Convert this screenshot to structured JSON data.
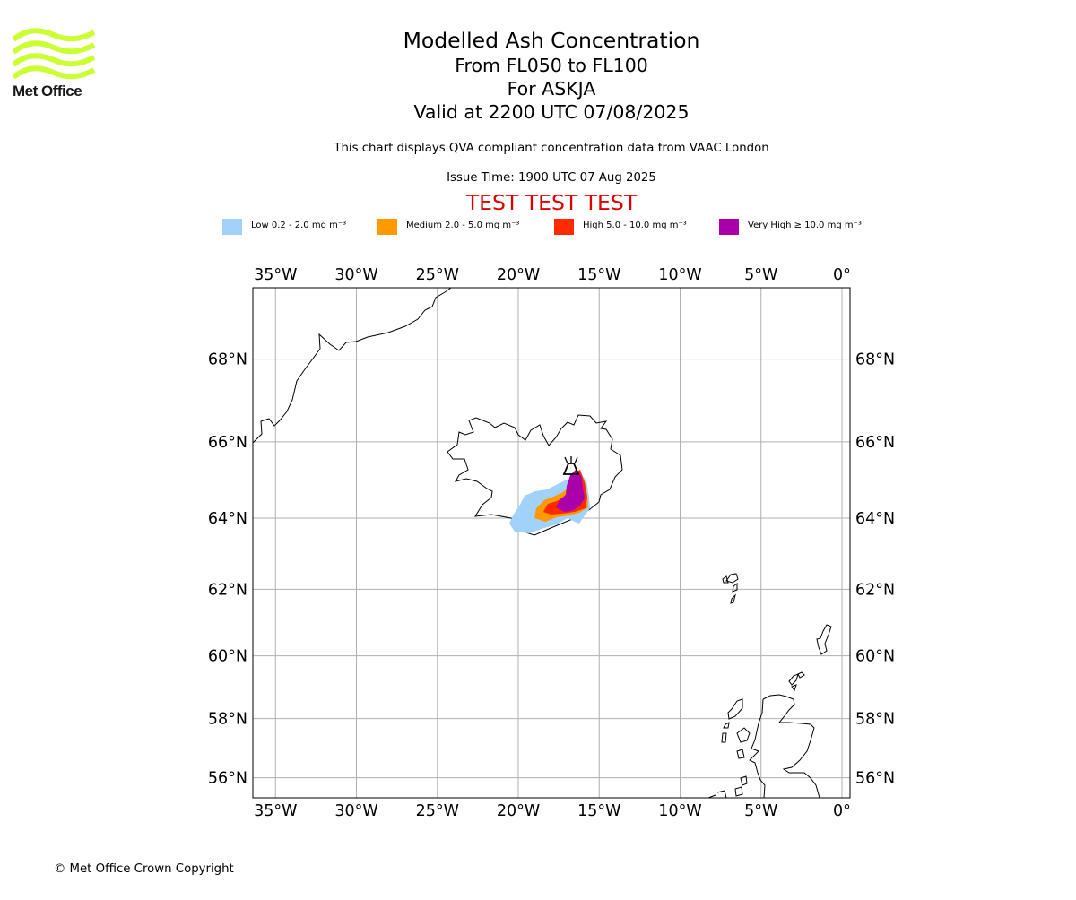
{
  "logo": {
    "text": "Met Office",
    "wave_color": "#ccff33",
    "text_color": "#1a1a1a"
  },
  "header": {
    "title": "Modelled Ash Concentration",
    "level_range": "From FL050 to FL100",
    "volcano": "For ASKJA",
    "valid_time": "Valid at 2200 UTC 07/08/2025",
    "description": "This chart displays QVA compliant concentration data from VAAC London",
    "issue_time": "Issue Time: 1900 UTC 07 Aug 2025",
    "test_banner": "TEST TEST TEST"
  },
  "legend": [
    {
      "label": "Low 0.2 - 2.0 mg m⁻³",
      "color": "#a0d2fa"
    },
    {
      "label": "Medium 2.0 - 5.0 mg m⁻³",
      "color": "#ff9900"
    },
    {
      "label": "High 5.0 - 10.0 mg m⁻³",
      "color": "#ff2a00"
    },
    {
      "label": "Very High ≥ 10.0 mg m⁻³",
      "color": "#aa00aa"
    }
  ],
  "map": {
    "projection": "Mercator",
    "extent": {
      "lon_min": -36.4,
      "lon_max": 0.5,
      "lat_min": 55.3,
      "lat_max": 69.6
    },
    "longitude_ticks": [
      {
        "value": -35,
        "label": "35°W"
      },
      {
        "value": -30,
        "label": "30°W"
      },
      {
        "value": -25,
        "label": "25°W"
      },
      {
        "value": -20,
        "label": "20°W"
      },
      {
        "value": -15,
        "label": "15°W"
      },
      {
        "value": -10,
        "label": "10°W"
      },
      {
        "value": -5,
        "label": "5°W"
      },
      {
        "value": 0,
        "label": "0°"
      }
    ],
    "latitude_ticks": [
      {
        "value": 68,
        "label": "68°N"
      },
      {
        "value": 66,
        "label": "66°N"
      },
      {
        "value": 64,
        "label": "64°N"
      },
      {
        "value": 62,
        "label": "62°N"
      },
      {
        "value": 60,
        "label": "60°N"
      },
      {
        "value": 58,
        "label": "58°N"
      },
      {
        "value": 56,
        "label": "56°N"
      }
    ],
    "gridlines": true,
    "grid_color": "#b0b0b0",
    "volcano_icon": "volcano-icon",
    "volcano_location": {
      "lon": -16.75,
      "lat": 65.03
    }
  },
  "footer": {
    "copyright": "© Met Office Crown Copyright"
  }
}
